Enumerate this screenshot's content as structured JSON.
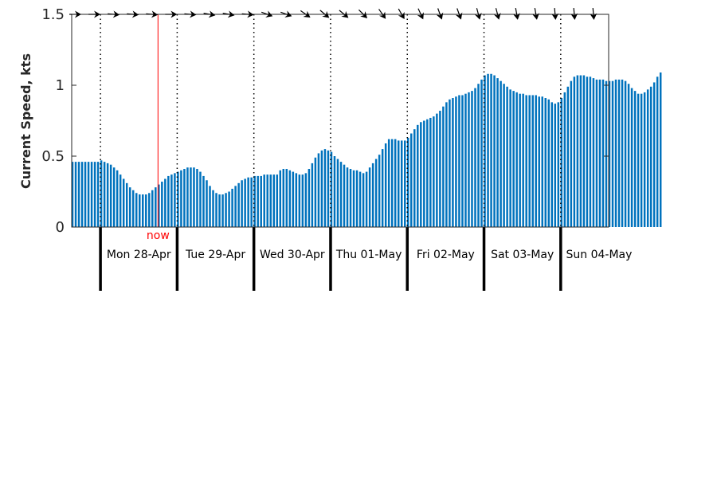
{
  "chart_data": {
    "type": "bar",
    "xlabel": "",
    "ylabel": "Current Speed, kts",
    "ylim": [
      0,
      1.5
    ],
    "yticks": [
      "0",
      "0.5",
      "1",
      "1.5"
    ],
    "ytick_values": [
      0,
      0.5,
      1,
      1.5
    ],
    "xlim_hours": [
      0,
      168
    ],
    "bar_interval_hours": 1,
    "grid": false,
    "bar_color": "#0072bd",
    "day_labels": [
      "Mon 28-Apr",
      "Tue 29-Apr",
      "Wed 30-Apr",
      "Thu 01-May",
      "Fri 02-May",
      "Sat 03-May",
      "Sun 04-May"
    ],
    "day_boundary_hours": [
      9,
      33,
      57,
      81,
      105,
      129,
      153
    ],
    "now": {
      "label": "now",
      "hour": 27,
      "color": "#ff0000"
    },
    "direction_arrows": {
      "description": "current direction arrows along top of chart",
      "hours": [
        0,
        6,
        12,
        18,
        24,
        30,
        36,
        42,
        48,
        54,
        60,
        66,
        72,
        78,
        84,
        90,
        96,
        102,
        108,
        114,
        120,
        126,
        132,
        138,
        144,
        150,
        156,
        162
      ],
      "angles_deg": [
        0,
        0,
        5,
        5,
        5,
        0,
        5,
        10,
        10,
        5,
        20,
        20,
        35,
        40,
        40,
        45,
        55,
        60,
        65,
        70,
        70,
        75,
        75,
        80,
        80,
        85,
        85,
        85
      ]
    },
    "series": [
      {
        "values": [
          0.46,
          0.46,
          0.46,
          0.46,
          0.46,
          0.46,
          0.46,
          0.46,
          0.46,
          0.47,
          0.46,
          0.45,
          0.44,
          0.42,
          0.4,
          0.37,
          0.34,
          0.31,
          0.28,
          0.26,
          0.24,
          0.23,
          0.23,
          0.23,
          0.24,
          0.26,
          0.28,
          0.3,
          0.32,
          0.34,
          0.36,
          0.37,
          0.38,
          0.39,
          0.4,
          0.41,
          0.42,
          0.42,
          0.42,
          0.41,
          0.39,
          0.36,
          0.33,
          0.29,
          0.26,
          0.24,
          0.23,
          0.23,
          0.24,
          0.25,
          0.27,
          0.29,
          0.31,
          0.33,
          0.34,
          0.35,
          0.35,
          0.36,
          0.36,
          0.36,
          0.37,
          0.37,
          0.37,
          0.37,
          0.37,
          0.4,
          0.41,
          0.41,
          0.4,
          0.39,
          0.38,
          0.37,
          0.37,
          0.38,
          0.41,
          0.45,
          0.49,
          0.52,
          0.54,
          0.55,
          0.54,
          0.53,
          0.5,
          0.48,
          0.46,
          0.44,
          0.42,
          0.41,
          0.4,
          0.4,
          0.39,
          0.38,
          0.39,
          0.42,
          0.45,
          0.48,
          0.51,
          0.55,
          0.59,
          0.62,
          0.62,
          0.62,
          0.61,
          0.61,
          0.61,
          0.63,
          0.66,
          0.69,
          0.72,
          0.74,
          0.75,
          0.76,
          0.77,
          0.78,
          0.8,
          0.82,
          0.85,
          0.88,
          0.9,
          0.91,
          0.92,
          0.93,
          0.93,
          0.94,
          0.95,
          0.96,
          0.98,
          1.01,
          1.04,
          1.07,
          1.08,
          1.08,
          1.07,
          1.05,
          1.03,
          1.01,
          0.99,
          0.97,
          0.96,
          0.95,
          0.94,
          0.94,
          0.93,
          0.93,
          0.93,
          0.93,
          0.92,
          0.92,
          0.91,
          0.9,
          0.88,
          0.87,
          0.88,
          0.91,
          0.95,
          0.99,
          1.03,
          1.06,
          1.07,
          1.07,
          1.07,
          1.06,
          1.06,
          1.05,
          1.04,
          1.04,
          1.04,
          1.03,
          1.03,
          1.03,
          1.04,
          1.04,
          1.04,
          1.03,
          1.01,
          0.98,
          0.96,
          0.94,
          0.94,
          0.95,
          0.97,
          0.99,
          1.02,
          1.06,
          1.09
        ]
      }
    ]
  }
}
